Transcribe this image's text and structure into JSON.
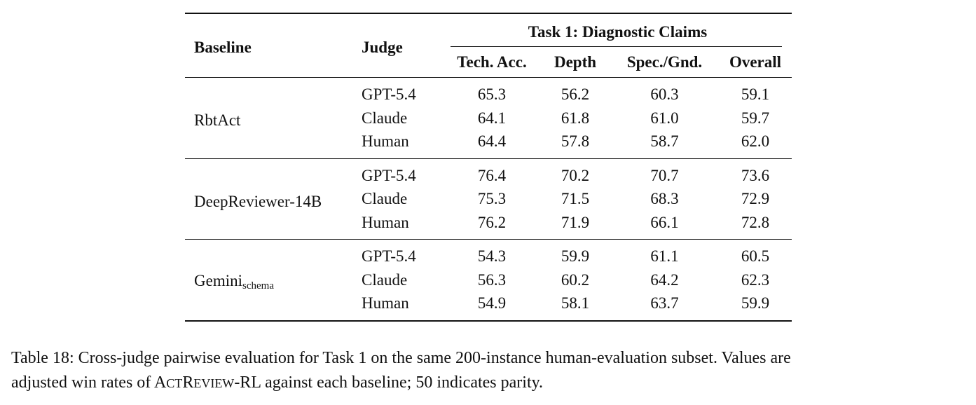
{
  "table": {
    "header": {
      "baseline": "Baseline",
      "judge": "Judge",
      "task": "Task 1: Diagnostic Claims",
      "columns": [
        "Tech. Acc.",
        "Depth",
        "Spec./Gnd.",
        "Overall"
      ]
    },
    "groups": [
      {
        "baseline": "RbtAct",
        "baseline_sub": "",
        "rows": [
          {
            "judge": "GPT-5.4",
            "values": [
              "65.3",
              "56.2",
              "60.3",
              "59.1"
            ]
          },
          {
            "judge": "Claude",
            "values": [
              "64.1",
              "61.8",
              "61.0",
              "59.7"
            ]
          },
          {
            "judge": "Human",
            "values": [
              "64.4",
              "57.8",
              "58.7",
              "62.0"
            ]
          }
        ]
      },
      {
        "baseline": "DeepReviewer-14B",
        "baseline_sub": "",
        "rows": [
          {
            "judge": "GPT-5.4",
            "values": [
              "76.4",
              "70.2",
              "70.7",
              "73.6"
            ]
          },
          {
            "judge": "Claude",
            "values": [
              "75.3",
              "71.5",
              "68.3",
              "72.9"
            ]
          },
          {
            "judge": "Human",
            "values": [
              "76.2",
              "71.9",
              "66.1",
              "72.8"
            ]
          }
        ]
      },
      {
        "baseline": "Gemini",
        "baseline_sub": "schema",
        "rows": [
          {
            "judge": "GPT-5.4",
            "values": [
              "54.3",
              "59.9",
              "61.1",
              "60.5"
            ]
          },
          {
            "judge": "Claude",
            "values": [
              "56.3",
              "60.2",
              "64.2",
              "62.3"
            ]
          },
          {
            "judge": "Human",
            "values": [
              "54.9",
              "58.1",
              "63.7",
              "59.9"
            ]
          }
        ]
      }
    ]
  },
  "caption": {
    "line1": "Table 18: Cross-judge pairwise evaluation for Task 1 on the same 200-instance human-evaluation subset. Values are",
    "line2_before": "adjusted win rates of ",
    "name_parts": [
      "A",
      "CT",
      "R",
      "EVIEW",
      "-RL"
    ],
    "line2_after": " against each baseline; 50 indicates parity."
  }
}
